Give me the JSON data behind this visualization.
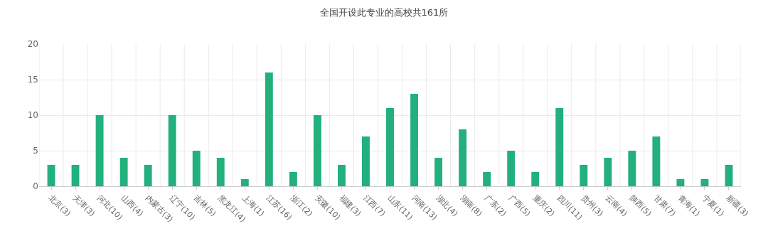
{
  "chart_data": {
    "type": "bar",
    "title": "全国开设此专业的高校共161所",
    "categories": [
      "北京(3)",
      "天津(3)",
      "河北(10)",
      "山西(4)",
      "内蒙古(3)",
      "辽宁(10)",
      "吉林(5)",
      "黑龙江(4)",
      "上海(1)",
      "江苏(16)",
      "浙江(2)",
      "安徽(10)",
      "福建(3)",
      "江西(7)",
      "山东(11)",
      "河南(13)",
      "湖北(4)",
      "湖南(8)",
      "广东(2)",
      "广西(5)",
      "重庆(2)",
      "四川(11)",
      "贵州(3)",
      "云南(4)",
      "陕西(5)",
      "甘肃(7)",
      "青海(1)",
      "宁夏(1)",
      "新疆(3)"
    ],
    "values": [
      3,
      3,
      10,
      4,
      3,
      10,
      5,
      4,
      1,
      16,
      2,
      10,
      3,
      7,
      11,
      13,
      4,
      8,
      2,
      5,
      2,
      11,
      3,
      4,
      5,
      7,
      1,
      1,
      3
    ],
    "color": "#22b07d",
    "ylim": [
      0,
      20
    ],
    "yticks": [
      0,
      5,
      10,
      15,
      20
    ],
    "grid": true,
    "legend": false
  }
}
